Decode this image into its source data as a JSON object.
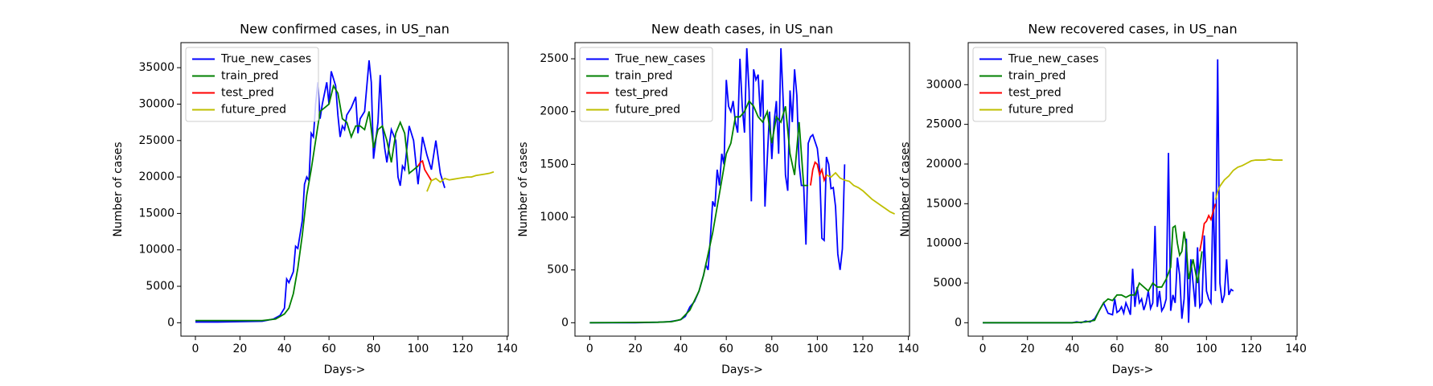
{
  "chart_data": [
    {
      "type": "line",
      "title": "New confirmed cases, in US_nan",
      "xlabel": "Days->",
      "ylabel": "Number of cases",
      "xlim": [
        -6.5,
        140.5
      ],
      "ylim": [
        -1840,
        38440
      ],
      "xticks": [
        0,
        20,
        40,
        60,
        80,
        100,
        120,
        140
      ],
      "yticks": [
        0,
        5000,
        10000,
        15000,
        20000,
        25000,
        30000,
        35000
      ],
      "legend": "upper left",
      "series": [
        {
          "name": "True_new_cases",
          "color": "#0000ff",
          "x": [
            0,
            10,
            20,
            30,
            35,
            38,
            40,
            41,
            42,
            44,
            45,
            46,
            48,
            49,
            50,
            51,
            52,
            53,
            54,
            55,
            56,
            57,
            58,
            59,
            60,
            61,
            62,
            63,
            64,
            65,
            66,
            67,
            68,
            70,
            72,
            73,
            74,
            76,
            78,
            79,
            80,
            81,
            82,
            83,
            84,
            85,
            86,
            88,
            90,
            91,
            92,
            93,
            94,
            96,
            98,
            100,
            101,
            102,
            104,
            106,
            108,
            110,
            112
          ],
          "values": [
            100,
            100,
            150,
            200,
            500,
            1000,
            2000,
            6000,
            5500,
            7000,
            10500,
            10200,
            14000,
            19000,
            20000,
            19500,
            26000,
            25500,
            30000,
            33000,
            28000,
            30000,
            31500,
            33000,
            30000,
            34500,
            33500,
            32500,
            28500,
            25500,
            27000,
            26500,
            28500,
            29500,
            31000,
            26000,
            28000,
            29000,
            36000,
            33000,
            22500,
            25000,
            27500,
            34000,
            27000,
            24000,
            22000,
            26500,
            25000,
            20000,
            18800,
            21500,
            21000,
            27000,
            25000,
            19000,
            22000,
            25500,
            23000,
            21000,
            25000,
            20500,
            18500
          ]
        },
        {
          "name": "train_pred",
          "color": "#008000",
          "x": [
            0,
            30,
            36,
            40,
            42,
            44,
            46,
            48,
            50,
            52,
            54,
            56,
            58,
            60,
            62,
            64,
            66,
            68,
            70,
            72,
            74,
            76,
            78,
            80,
            82,
            84,
            86,
            88,
            90,
            92,
            94,
            96,
            98,
            100
          ],
          "values": [
            300,
            300,
            500,
            1200,
            2000,
            4000,
            7500,
            12000,
            17500,
            21000,
            25000,
            29000,
            29500,
            30000,
            32500,
            31500,
            28000,
            27500,
            25500,
            27000,
            27000,
            26500,
            29000,
            24000,
            26500,
            27000,
            25000,
            22000,
            26000,
            27500,
            26000,
            20500,
            21000,
            21500
          ]
        },
        {
          "name": "test_pred",
          "color": "#ff0000",
          "x": [
            100,
            101,
            102,
            103,
            104,
            105,
            106
          ],
          "values": [
            21500,
            22000,
            22200,
            21000,
            20500,
            20000,
            19500
          ]
        },
        {
          "name": "future_pred",
          "color": "#bfbf00",
          "x": [
            104,
            106,
            108,
            110,
            112,
            114,
            116,
            118,
            120,
            122,
            124,
            126,
            128,
            130,
            132,
            134
          ],
          "values": [
            18000,
            19500,
            19800,
            19300,
            19800,
            19600,
            19700,
            19800,
            19900,
            20000,
            20000,
            20200,
            20300,
            20400,
            20500,
            20700
          ]
        }
      ]
    },
    {
      "type": "line",
      "title": "New death cases, in US_nan",
      "xlabel": "Days->",
      "ylabel": "Number of cases",
      "xlim": [
        -6.5,
        140.5
      ],
      "ylim": [
        -127,
        2653
      ],
      "xticks": [
        0,
        20,
        40,
        60,
        80,
        100,
        120,
        140
      ],
      "yticks": [
        0,
        500,
        1000,
        1500,
        2000,
        2500
      ],
      "legend": "upper left",
      "series": [
        {
          "name": "True_new_cases",
          "color": "#0000ff",
          "x": [
            0,
            20,
            30,
            35,
            38,
            40,
            42,
            44,
            46,
            48,
            50,
            51,
            52,
            53,
            54,
            55,
            56,
            57,
            58,
            59,
            60,
            61,
            62,
            63,
            64,
            65,
            66,
            67,
            68,
            69,
            70,
            71,
            72,
            73,
            74,
            75,
            76,
            77,
            78,
            79,
            80,
            81,
            82,
            83,
            84,
            85,
            86,
            87,
            88,
            89,
            90,
            91,
            92,
            93,
            94,
            95,
            96,
            97,
            98,
            100,
            101,
            102,
            103,
            104,
            105,
            106,
            107,
            108,
            109,
            110,
            111,
            112
          ],
          "values": [
            0,
            0,
            5,
            10,
            20,
            30,
            60,
            150,
            200,
            300,
            450,
            550,
            500,
            800,
            1150,
            1100,
            1450,
            1300,
            1600,
            1500,
            2300,
            2050,
            2000,
            2100,
            1900,
            1800,
            2500,
            2050,
            1800,
            2600,
            2200,
            1150,
            2400,
            2300,
            2350,
            1950,
            2300,
            1100,
            1550,
            2000,
            1550,
            1900,
            2100,
            1600,
            2600,
            2100,
            1400,
            1250,
            2200,
            1900,
            2400,
            2150,
            1500,
            1300,
            1300,
            740,
            1700,
            1760,
            1780,
            1650,
            1450,
            800,
            780,
            1570,
            1500,
            1270,
            1280,
            1100,
            650,
            500,
            700,
            1500
          ]
        },
        {
          "name": "train_pred",
          "color": "#008000",
          "x": [
            0,
            30,
            36,
            40,
            44,
            48,
            50,
            52,
            54,
            56,
            58,
            60,
            62,
            64,
            66,
            68,
            70,
            72,
            74,
            76,
            78,
            80,
            82,
            84,
            86,
            88,
            90,
            92,
            94,
            96
          ],
          "values": [
            0,
            5,
            10,
            30,
            120,
            300,
            450,
            650,
            850,
            1100,
            1350,
            1600,
            1700,
            1950,
            1950,
            2000,
            2100,
            2050,
            1950,
            1900,
            2000,
            1700,
            1950,
            1900,
            2050,
            1600,
            1400,
            1900,
            1300,
            1300
          ]
        },
        {
          "name": "test_pred",
          "color": "#ff0000",
          "x": [
            97,
            98,
            99,
            100,
            101,
            102,
            103,
            104
          ],
          "values": [
            1300,
            1450,
            1520,
            1500,
            1400,
            1450,
            1350,
            1400
          ]
        },
        {
          "name": "future_pred",
          "color": "#bfbf00",
          "x": [
            104,
            106,
            108,
            110,
            112,
            114,
            116,
            118,
            120,
            122,
            124,
            126,
            128,
            130,
            132,
            134
          ],
          "values": [
            1400,
            1380,
            1420,
            1370,
            1350,
            1340,
            1300,
            1280,
            1250,
            1210,
            1170,
            1140,
            1110,
            1080,
            1050,
            1030
          ]
        }
      ]
    },
    {
      "type": "line",
      "title": "New recovered cases, in US_nan",
      "xlabel": "Days->",
      "ylabel": "Number of cases",
      "xlim": [
        -6.5,
        140.5
      ],
      "ylim": [
        -1690,
        35300
      ],
      "xticks": [
        0,
        20,
        40,
        60,
        80,
        100,
        120,
        140
      ],
      "yticks": [
        0,
        5000,
        10000,
        15000,
        20000,
        25000,
        30000
      ],
      "legend": "upper left",
      "series": [
        {
          "name": "True_new_cases",
          "color": "#0000ff",
          "x": [
            0,
            20,
            40,
            42,
            44,
            46,
            48,
            50,
            52,
            54,
            56,
            58,
            59,
            60,
            61,
            62,
            63,
            64,
            65,
            66,
            67,
            68,
            69,
            70,
            71,
            72,
            73,
            74,
            75,
            76,
            77,
            78,
            79,
            80,
            81,
            82,
            83,
            84,
            85,
            86,
            87,
            88,
            89,
            90,
            91,
            92,
            93,
            94,
            95,
            96,
            97,
            98,
            99,
            100,
            101,
            102,
            103,
            104,
            105,
            106,
            107,
            108,
            109,
            110,
            111,
            112
          ],
          "values": [
            0,
            0,
            0,
            100,
            0,
            200,
            100,
            500,
            1500,
            2500,
            1200,
            1000,
            3000,
            1300,
            1500,
            2000,
            1200,
            2500,
            1800,
            1000,
            6800,
            2000,
            4500,
            2500,
            3000,
            1600,
            2500,
            4000,
            1800,
            2500,
            12200,
            2000,
            4000,
            1500,
            2000,
            3000,
            21400,
            1500,
            3500,
            2500,
            8200,
            6000,
            500,
            3000,
            10600,
            0,
            8000,
            5000,
            2000,
            9500,
            2000,
            2500,
            11000,
            4000,
            3000,
            2500,
            16500,
            4000,
            33200,
            5000,
            2500,
            3500,
            8000,
            3500,
            4200,
            4000
          ]
        },
        {
          "name": "train_pred",
          "color": "#008000",
          "x": [
            0,
            40,
            46,
            50,
            52,
            54,
            56,
            58,
            60,
            62,
            64,
            66,
            68,
            70,
            72,
            74,
            76,
            78,
            80,
            82,
            84,
            85,
            86,
            87,
            88,
            89,
            90,
            91,
            92,
            94,
            96,
            98
          ],
          "values": [
            0,
            0,
            100,
            300,
            1500,
            2500,
            3000,
            2800,
            3500,
            3500,
            3200,
            3500,
            3500,
            5000,
            4500,
            4000,
            5000,
            4500,
            4500,
            5500,
            7000,
            12000,
            12200,
            10000,
            8500,
            9000,
            11500,
            9500,
            5500,
            8000,
            5000,
            9000
          ]
        },
        {
          "name": "test_pred",
          "color": "#ff0000",
          "x": [
            97,
            98,
            99,
            100,
            101,
            102,
            103,
            104
          ],
          "values": [
            9000,
            10500,
            12500,
            12800,
            13500,
            13000,
            14000,
            15000
          ]
        },
        {
          "name": "future_pred",
          "color": "#bfbf00",
          "x": [
            104,
            105,
            106,
            108,
            110,
            112,
            114,
            116,
            118,
            120,
            122,
            124,
            126,
            128,
            130,
            132,
            134
          ],
          "values": [
            15500,
            16500,
            17200,
            18000,
            18500,
            19200,
            19600,
            19800,
            20100,
            20400,
            20500,
            20500,
            20500,
            20600,
            20500,
            20500,
            20500
          ]
        }
      ]
    }
  ]
}
